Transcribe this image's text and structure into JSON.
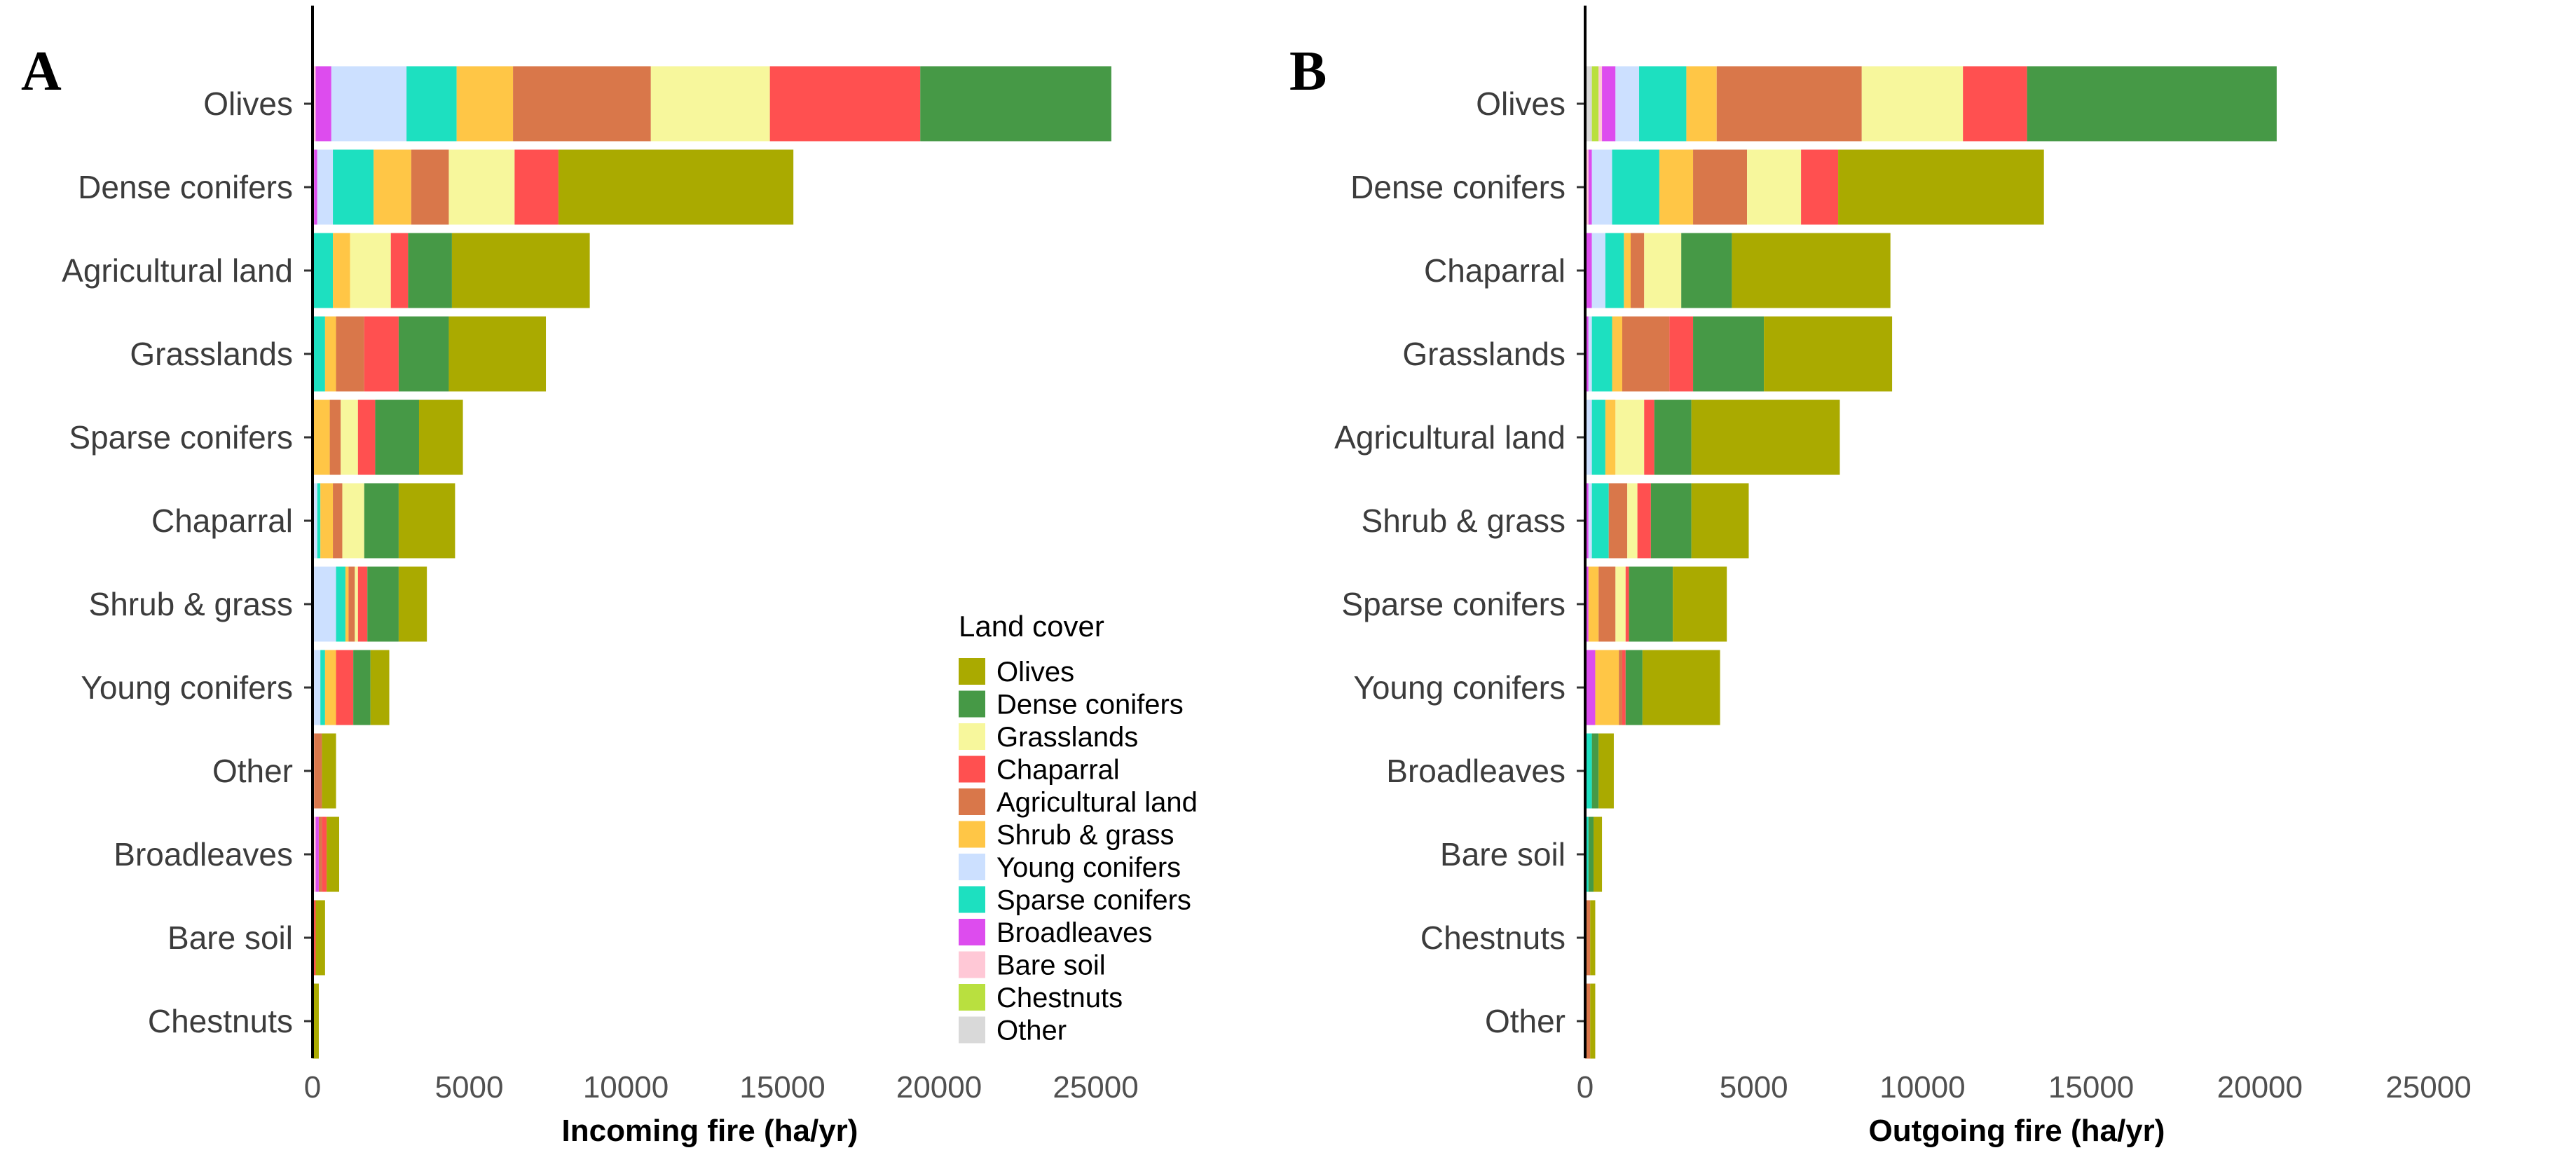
{
  "chart_data": [
    {
      "type": "bar",
      "orientation": "horizontal",
      "stacked": true,
      "panel_label": "A",
      "xlabel": "Incoming fire  (ha/yr)",
      "xlim": [
        0,
        28500
      ],
      "xticks": [
        "0",
        "5000",
        "10000",
        "15000",
        "20000",
        "25000"
      ],
      "categories": [
        "Olives",
        "Dense conifers",
        "Agricultural land",
        "Grasslands",
        "Sparse conifers",
        "Chaparral",
        "Shrub & grass",
        "Young conifers",
        "Other",
        "Broadleaves",
        "Bare soil",
        "Chestnuts"
      ],
      "series": [
        {
          "name": "Other",
          "values": [
            0,
            0,
            0,
            0,
            0,
            0,
            0,
            0,
            0,
            0,
            0,
            0
          ]
        },
        {
          "name": "Chestnuts",
          "values": [
            0,
            0,
            0,
            0,
            0,
            0,
            0,
            0,
            0,
            0,
            0,
            0
          ]
        },
        {
          "name": "Bare soil",
          "values": [
            100,
            50,
            0,
            0,
            0,
            50,
            50,
            50,
            50,
            100,
            0,
            0
          ]
        },
        {
          "name": "Broadleaves",
          "values": [
            500,
            100,
            0,
            0,
            0,
            0,
            0,
            0,
            0,
            100,
            0,
            0
          ]
        },
        {
          "name": "Young conifers",
          "values": [
            2400,
            500,
            0,
            0,
            0,
            100,
            700,
            200,
            0,
            0,
            0,
            0
          ]
        },
        {
          "name": "Sparse conifers",
          "values": [
            1600,
            1300,
            650,
            400,
            0,
            100,
            300,
            150,
            0,
            0,
            0,
            0
          ]
        },
        {
          "name": "Shrub & grass",
          "values": [
            1800,
            1200,
            550,
            350,
            550,
            400,
            100,
            350,
            0,
            0,
            0,
            0
          ]
        },
        {
          "name": "Agricultural land",
          "values": [
            4400,
            1200,
            0,
            900,
            350,
            300,
            200,
            0,
            250,
            100,
            0,
            0
          ]
        },
        {
          "name": "Grasslands",
          "values": [
            3800,
            2100,
            1300,
            0,
            550,
            700,
            100,
            0,
            0,
            0,
            0,
            0
          ]
        },
        {
          "name": "Chaparral",
          "values": [
            4800,
            1400,
            550,
            1100,
            550,
            0,
            300,
            550,
            0,
            150,
            100,
            0
          ]
        },
        {
          "name": "Dense conifers",
          "values": [
            6100,
            0,
            1400,
            1600,
            1400,
            1100,
            1000,
            550,
            0,
            0,
            0,
            0
          ]
        },
        {
          "name": "Olives",
          "values": [
            0,
            7500,
            4400,
            3100,
            1400,
            1800,
            900,
            600,
            450,
            400,
            300,
            200
          ]
        }
      ]
    },
    {
      "type": "bar",
      "orientation": "horizontal",
      "stacked": true,
      "panel_label": "B",
      "xlabel": "Outgoing fire (ha/yr)",
      "xlim": [
        0,
        28500
      ],
      "xticks": [
        "0",
        "5000",
        "10000",
        "15000",
        "20000",
        "25000"
      ],
      "categories": [
        "Olives",
        "Dense conifers",
        "Chaparral",
        "Grasslands",
        "Agricultural land",
        "Shrub & grass",
        "Sparse conifers",
        "Young conifers",
        "Broadleaves",
        "Bare soil",
        "Chestnuts",
        "Other"
      ],
      "series": [
        {
          "name": "Other",
          "values": [
            200,
            0,
            0,
            0,
            0,
            0,
            0,
            0,
            0,
            0,
            0,
            0
          ]
        },
        {
          "name": "Chestnuts",
          "values": [
            200,
            0,
            0,
            0,
            0,
            0,
            0,
            0,
            0,
            0,
            0,
            0
          ]
        },
        {
          "name": "Bare soil",
          "values": [
            100,
            100,
            0,
            0,
            0,
            0,
            0,
            0,
            0,
            0,
            0,
            0
          ]
        },
        {
          "name": "Broadleaves",
          "values": [
            400,
            100,
            200,
            100,
            0,
            100,
            100,
            300,
            0,
            0,
            0,
            0
          ]
        },
        {
          "name": "Young conifers",
          "values": [
            700,
            600,
            400,
            100,
            200,
            100,
            0,
            0,
            0,
            0,
            0,
            0
          ]
        },
        {
          "name": "Sparse conifers",
          "values": [
            1400,
            1400,
            550,
            600,
            400,
            500,
            0,
            0,
            200,
            100,
            0,
            0
          ]
        },
        {
          "name": "Shrub & grass",
          "values": [
            900,
            1000,
            200,
            300,
            300,
            0,
            300,
            700,
            0,
            0,
            0,
            0
          ]
        },
        {
          "name": "Agricultural land",
          "values": [
            4300,
            1600,
            400,
            1400,
            0,
            550,
            500,
            100,
            0,
            0,
            150,
            150
          ]
        },
        {
          "name": "Grasslands",
          "values": [
            3000,
            1600,
            1100,
            0,
            850,
            300,
            300,
            0,
            0,
            0,
            0,
            0
          ]
        },
        {
          "name": "Chaparral",
          "values": [
            1900,
            1100,
            0,
            700,
            300,
            400,
            100,
            100,
            0,
            0,
            0,
            0
          ]
        },
        {
          "name": "Dense conifers",
          "values": [
            7400,
            0,
            1500,
            2100,
            1100,
            1200,
            1300,
            500,
            200,
            150,
            0,
            0
          ]
        },
        {
          "name": "Olives",
          "values": [
            0,
            6100,
            4700,
            3800,
            4400,
            1700,
            1600,
            2300,
            450,
            250,
            150,
            150
          ]
        }
      ]
    }
  ],
  "legend": {
    "title": "Land cover",
    "items": [
      {
        "name": "Olives",
        "color": "#aaaa00"
      },
      {
        "name": "Dense conifers",
        "color": "#469946"
      },
      {
        "name": "Grasslands",
        "color": "#f7f79c"
      },
      {
        "name": "Chaparral",
        "color": "#ff5050"
      },
      {
        "name": "Agricultural land",
        "color": "#d9774a"
      },
      {
        "name": "Shrub & grass",
        "color": "#ffc646"
      },
      {
        "name": "Young conifers",
        "color": "#cce0ff"
      },
      {
        "name": "Sparse conifers",
        "color": "#1de0c0"
      },
      {
        "name": "Broadleaves",
        "color": "#dd4cee"
      },
      {
        "name": "Bare soil",
        "color": "#ffc8d6"
      },
      {
        "name": "Chestnuts",
        "color": "#b9e03f"
      },
      {
        "name": "Other",
        "color": "#d9d9d9"
      }
    ]
  }
}
